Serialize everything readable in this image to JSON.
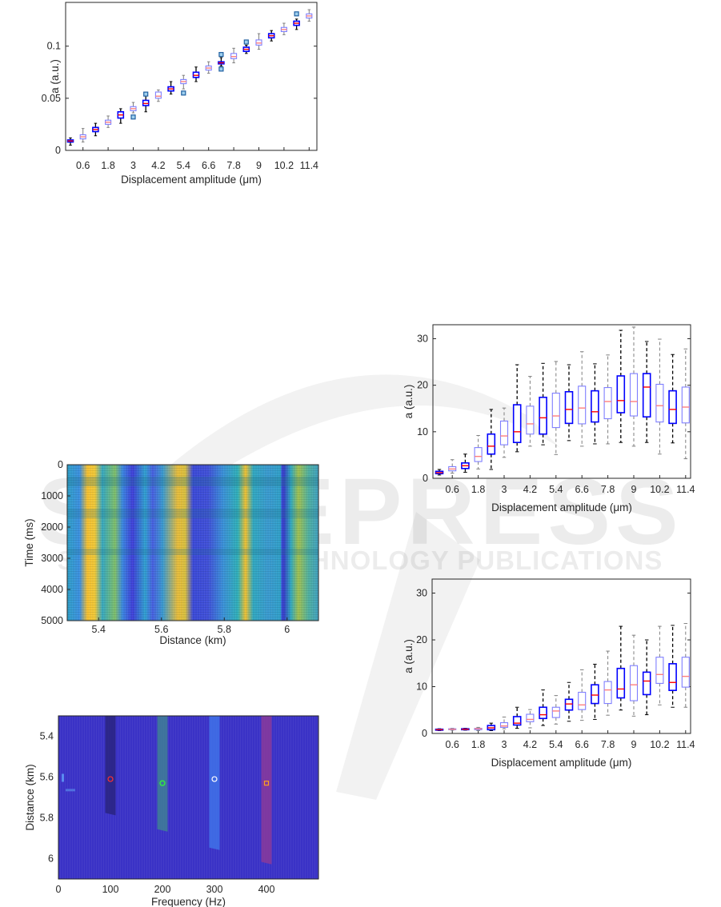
{
  "watermark": {
    "line1": "SCITEPRESS",
    "line2": "SCIENCE AND TECHNOLOGY PUBLICATIONS"
  },
  "colors": {
    "box_dark": "#0000ff",
    "box_light": "#7f7fff",
    "median_dark": "#ff0000",
    "median_light": "#ff7f7f",
    "whisker_dark": "#000000",
    "whisker_light": "#7f7f7f",
    "outlier": "#1f5fa0"
  },
  "chart_data": [
    {
      "id": "boxplot-a-small",
      "type": "boxplot",
      "xlabel": "Displacement amplitude (μm)",
      "ylabel": "a (a.u.)",
      "ylim": [
        0,
        0.142
      ],
      "yticks": [
        "0",
        "0.05",
        "0.1"
      ],
      "ytick_values": [
        0,
        0.05,
        0.1
      ],
      "xtick_labels": [
        "0.6",
        "1.8",
        "3",
        "4.2",
        "5.4",
        "6.6",
        "7.8",
        "9",
        "10.2",
        "11.4"
      ],
      "amplitudes": [
        0,
        0.6,
        1.2,
        1.8,
        2.4,
        3,
        3.6,
        4.2,
        4.8,
        5.4,
        6,
        6.6,
        7.2,
        7.8,
        8.4,
        9,
        9.6,
        10.2,
        10.8,
        11.4
      ],
      "median": [
        0.009,
        0.013,
        0.02,
        0.027,
        0.034,
        0.04,
        0.045,
        0.052,
        0.059,
        0.066,
        0.072,
        0.079,
        0.084,
        0.09,
        0.097,
        0.103,
        0.11,
        0.116,
        0.122,
        0.129
      ],
      "q1": [
        0.008,
        0.011,
        0.018,
        0.025,
        0.031,
        0.038,
        0.043,
        0.05,
        0.057,
        0.064,
        0.07,
        0.077,
        0.083,
        0.088,
        0.095,
        0.101,
        0.108,
        0.114,
        0.12,
        0.127
      ],
      "q3": [
        0.01,
        0.015,
        0.022,
        0.029,
        0.037,
        0.042,
        0.048,
        0.056,
        0.061,
        0.068,
        0.075,
        0.081,
        0.085,
        0.093,
        0.099,
        0.106,
        0.112,
        0.118,
        0.124,
        0.131
      ],
      "whisker_low": [
        0.005,
        0.008,
        0.014,
        0.022,
        0.026,
        0.036,
        0.037,
        0.047,
        0.054,
        0.059,
        0.066,
        0.074,
        0.081,
        0.084,
        0.093,
        0.097,
        0.105,
        0.111,
        0.116,
        0.124
      ],
      "whisker_high": [
        0.012,
        0.021,
        0.026,
        0.033,
        0.04,
        0.046,
        0.053,
        0.058,
        0.066,
        0.072,
        0.08,
        0.085,
        0.089,
        0.098,
        0.101,
        0.112,
        0.115,
        0.122,
        0.126,
        0.135
      ],
      "outliers": [
        [
          5,
          0.032
        ],
        [
          6,
          0.054
        ],
        [
          9,
          0.055
        ],
        [
          12,
          0.092
        ],
        [
          12,
          0.078
        ],
        [
          14,
          0.104
        ],
        [
          18,
          0.131
        ]
      ],
      "whisker_style": "solid"
    },
    {
      "id": "boxplot-b",
      "type": "boxplot",
      "xlabel": "Displacement amplitude (μm)",
      "ylabel": "a (a.u.)",
      "ylim": [
        0,
        33
      ],
      "yticks": [
        "0",
        "10",
        "20",
        "30"
      ],
      "ytick_values": [
        0,
        10,
        20,
        30
      ],
      "xtick_labels": [
        "0.6",
        "1.8",
        "3",
        "4.2",
        "5.4",
        "6.6",
        "7.8",
        "9",
        "10.2",
        "11.4"
      ],
      "amplitudes": [
        0,
        0.6,
        1.2,
        1.8,
        2.4,
        3,
        3.6,
        4.2,
        4.8,
        5.4,
        6,
        6.6,
        7.2,
        7.8,
        8.4,
        9,
        9.6,
        10.2,
        10.8,
        11.4
      ],
      "median": [
        1.2,
        2,
        2.7,
        4.7,
        6.9,
        9.1,
        10,
        11.7,
        13,
        13.4,
        14.8,
        15.1,
        14.3,
        16.5,
        16.7,
        16.5,
        19.6,
        15.6,
        14.8,
        15.3
      ],
      "q1": [
        1,
        1.6,
        2.1,
        3.6,
        5.2,
        7.2,
        7.7,
        9.5,
        9.5,
        10.9,
        11.8,
        11.7,
        12.1,
        12.8,
        14.1,
        13.4,
        13.2,
        12.1,
        11.8,
        11.9
      ],
      "q3": [
        1.5,
        2.5,
        3.3,
        6.6,
        9.5,
        12.3,
        15.8,
        15.5,
        17.4,
        18.3,
        18.6,
        19.8,
        18.8,
        19.5,
        22,
        22.5,
        22.5,
        20.2,
        18.8,
        19.6
      ],
      "whisker_low": [
        0.7,
        1.1,
        1.3,
        2,
        1.9,
        4.5,
        5.7,
        6.9,
        7.2,
        5.1,
        8.1,
        6.9,
        7.4,
        7.4,
        7.7,
        6.9,
        7.7,
        5.2,
        7.6,
        4.2
      ],
      "whisker_high": [
        1.9,
        4,
        5.2,
        9.2,
        14.8,
        15.1,
        24.4,
        21.9,
        24.7,
        25.1,
        24.4,
        27.2,
        24.6,
        26.5,
        31.8,
        32.5,
        29.4,
        29.9,
        26.6,
        27.8
      ],
      "outliers": [],
      "whisker_style": "dashed"
    },
    {
      "id": "boxplot-c",
      "type": "boxplot",
      "xlabel": "Displacement amplitude (μm)",
      "ylabel": "a (a.u.)",
      "ylim": [
        0,
        33
      ],
      "yticks": [
        "0",
        "10",
        "20",
        "30"
      ],
      "ytick_values": [
        0,
        10,
        20,
        30
      ],
      "xtick_labels": [
        "0.6",
        "1.8",
        "3",
        "4.2",
        "5.4",
        "6.6",
        "7.8",
        "9",
        "10.2",
        "11.4"
      ],
      "amplitudes": [
        0,
        0.6,
        1.2,
        1.8,
        2.4,
        3,
        3.6,
        4.2,
        4.8,
        5.4,
        6,
        6.6,
        7.2,
        7.8,
        8.4,
        9,
        9.6,
        10.2,
        10.8,
        11.4
      ],
      "median": [
        0.8,
        0.9,
        0.9,
        1,
        1.2,
        1.6,
        2.2,
        3,
        4,
        4.8,
        6.3,
        6.1,
        8.2,
        9.3,
        9.5,
        10.4,
        11.2,
        12.6,
        10.9,
        12.2
      ],
      "q1": [
        0.7,
        0.8,
        0.8,
        0.8,
        0.8,
        1.3,
        1.8,
        2.5,
        3.2,
        3.4,
        5,
        5.1,
        6.4,
        6.4,
        7.6,
        7,
        8.3,
        10.7,
        9.2,
        9.9
      ],
      "q3": [
        0.9,
        1,
        1,
        1.1,
        1.7,
        2.3,
        3.6,
        4.1,
        5.6,
        5.6,
        7.3,
        8.8,
        10.4,
        11.1,
        13.9,
        14.5,
        13.1,
        16.3,
        14.9,
        16.3
      ],
      "whisker_low": [
        0.6,
        0.7,
        0.7,
        0.6,
        0.6,
        1,
        1.1,
        1.2,
        1.7,
        2,
        2.6,
        2.8,
        3,
        3.9,
        5,
        3.7,
        4,
        6.1,
        5.6,
        5.6
      ],
      "whisker_high": [
        1,
        1.1,
        1.1,
        1.3,
        2.2,
        3.5,
        5.6,
        5.1,
        9.3,
        8.1,
        10.9,
        13.6,
        14.8,
        17.6,
        22.9,
        21,
        20,
        22.9,
        23.1,
        23.5
      ],
      "outliers": [],
      "whisker_style": "dashed"
    },
    {
      "id": "heatmap-time-distance",
      "type": "heatmap",
      "xlabel": "Distance (km)",
      "ylabel": "Time (ms)",
      "xlim": [
        5.3,
        6.1
      ],
      "ylim": [
        0,
        5000
      ],
      "xticks": [
        "5.4",
        "5.6",
        "5.8",
        "6"
      ],
      "xtick_values": [
        5.4,
        5.6,
        5.8,
        6
      ],
      "yticks": [
        "0",
        "1000",
        "2000",
        "3000",
        "4000",
        "5000"
      ],
      "ytick_values": [
        0,
        1000,
        2000,
        3000,
        4000,
        5000
      ],
      "high_intensity_bands_km": [
        5.37,
        5.56,
        5.77,
        6.02
      ],
      "low_intensity_bands_km": [
        5.47,
        5.66,
        5.95
      ]
    },
    {
      "id": "heatmap-frequency-distance",
      "type": "heatmap",
      "xlabel": "Frequency (Hz)",
      "ylabel": "Distance (km)",
      "xlim": [
        0,
        500
      ],
      "ylim": [
        5.3,
        6.1
      ],
      "xticks": [
        "0",
        "100",
        "200",
        "300",
        "400"
      ],
      "xtick_values": [
        0,
        100,
        200,
        300,
        400
      ],
      "yticks": [
        "5.4",
        "5.6",
        "5.8",
        "6"
      ],
      "ytick_values": [
        5.4,
        5.6,
        5.8,
        6
      ],
      "bands": [
        {
          "freq": 100,
          "end_km": 5.78,
          "color": "#2a2580"
        },
        {
          "freq": 200,
          "end_km": 5.86,
          "color": "#3f7f95"
        },
        {
          "freq": 300,
          "end_km": 5.95,
          "color": "#3f72e8"
        },
        {
          "freq": 400,
          "end_km": 6.02,
          "color": "#8a3a9a"
        }
      ],
      "markers": [
        {
          "freq": 100,
          "km": 5.61,
          "shape": "circle",
          "color": "#ff3030"
        },
        {
          "freq": 200,
          "km": 5.63,
          "shape": "circle",
          "color": "#30ff30"
        },
        {
          "freq": 300,
          "km": 5.61,
          "shape": "circle",
          "color": "#ffffff"
        },
        {
          "freq": 400,
          "km": 5.63,
          "shape": "square",
          "color": "#ffa020"
        }
      ]
    }
  ]
}
